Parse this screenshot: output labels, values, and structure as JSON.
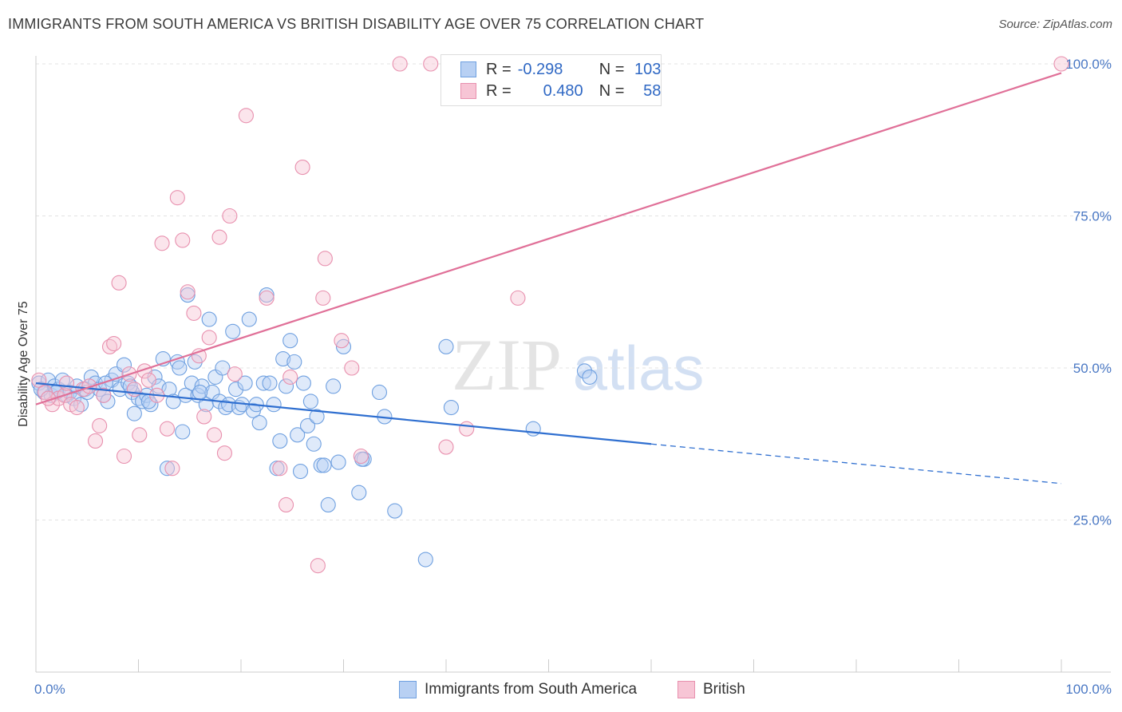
{
  "header": {
    "title": "IMMIGRANTS FROM SOUTH AMERICA VS BRITISH DISABILITY AGE OVER 75 CORRELATION CHART",
    "source": "Source: ZipAtlas.com"
  },
  "watermark": {
    "zip": "ZIP",
    "atlas": "atlas"
  },
  "legend": {
    "rows": [
      {
        "r_label": "R =",
        "r_value": "-0.298",
        "n_label": "N =",
        "n_value": "103",
        "color": "#6fa0e0",
        "fill": "#b8d0f3"
      },
      {
        "r_label": "R =",
        "r_value": "0.480",
        "n_label": "N =",
        "n_value": "58",
        "color": "#e890ae",
        "fill": "#f7c5d5"
      }
    ]
  },
  "bottom_legend": {
    "items": [
      {
        "label": "Immigrants from South America",
        "color": "#6fa0e0",
        "fill": "#b8d0f3"
      },
      {
        "label": "British",
        "color": "#e890ae",
        "fill": "#f7c5d5"
      }
    ]
  },
  "chart_data": {
    "type": "scatter",
    "ylabel": "Disability Age Over 75",
    "xlabel": "",
    "xlim": [
      0,
      100
    ],
    "ylim": [
      0,
      104
    ],
    "x_tick_labels": [
      "0.0%",
      "100.0%"
    ],
    "y_ticks": [
      25,
      50,
      75,
      100
    ],
    "y_tick_labels": [
      "25.0%",
      "50.0%",
      "75.0%",
      "100.0%"
    ],
    "grid": "horizontal dashed",
    "series": [
      {
        "name": "Immigrants from South America",
        "color": "#6fa0e0",
        "fill": "#b8d0f3",
        "trend": {
          "x0": 0,
          "y0": 47.5,
          "x1": 60,
          "y1": 37.5,
          "dashed_to_x": 100,
          "dashed_to_y": 31.0,
          "color": "#2f6fd0"
        },
        "points": [
          [
            0.3,
            47.5
          ],
          [
            0.8,
            46.0
          ],
          [
            1.2,
            48.0
          ],
          [
            1.5,
            45.5
          ],
          [
            1.8,
            47.0
          ],
          [
            2.2,
            46.5
          ],
          [
            2.6,
            48.0
          ],
          [
            3.0,
            45.5
          ],
          [
            3.3,
            46.0
          ],
          [
            3.7,
            45.0
          ],
          [
            4.0,
            47.0
          ],
          [
            4.4,
            44.0
          ],
          [
            4.8,
            46.5
          ],
          [
            5.0,
            46.0
          ],
          [
            5.4,
            48.5
          ],
          [
            5.8,
            47.5
          ],
          [
            6.2,
            46.5
          ],
          [
            6.6,
            45.5
          ],
          [
            7.0,
            44.5
          ],
          [
            7.4,
            48.0
          ],
          [
            7.8,
            49.0
          ],
          [
            8.2,
            46.5
          ],
          [
            8.6,
            50.5
          ],
          [
            9.0,
            47.5
          ],
          [
            9.4,
            46.0
          ],
          [
            9.6,
            42.5
          ],
          [
            10.0,
            45.0
          ],
          [
            10.4,
            44.5
          ],
          [
            10.8,
            45.5
          ],
          [
            11.2,
            44.0
          ],
          [
            11.6,
            48.5
          ],
          [
            12.0,
            47.0
          ],
          [
            12.4,
            51.5
          ],
          [
            12.8,
            33.5
          ],
          [
            13.0,
            46.5
          ],
          [
            13.4,
            44.5
          ],
          [
            13.8,
            51.0
          ],
          [
            14.0,
            50.0
          ],
          [
            14.3,
            39.5
          ],
          [
            14.6,
            45.5
          ],
          [
            14.8,
            62.0
          ],
          [
            15.2,
            47.5
          ],
          [
            15.5,
            51.0
          ],
          [
            15.8,
            45.5
          ],
          [
            16.2,
            47.0
          ],
          [
            16.6,
            44.0
          ],
          [
            16.9,
            58.0
          ],
          [
            17.2,
            46.0
          ],
          [
            17.5,
            48.5
          ],
          [
            17.9,
            44.5
          ],
          [
            18.2,
            50.0
          ],
          [
            18.5,
            43.5
          ],
          [
            18.8,
            44.0
          ],
          [
            19.2,
            56.0
          ],
          [
            19.5,
            46.5
          ],
          [
            19.8,
            43.5
          ],
          [
            20.1,
            44.0
          ],
          [
            20.4,
            47.5
          ],
          [
            20.8,
            58.0
          ],
          [
            21.2,
            43.0
          ],
          [
            21.5,
            44.0
          ],
          [
            21.8,
            41.0
          ],
          [
            22.2,
            47.5
          ],
          [
            22.5,
            62.0
          ],
          [
            22.8,
            47.5
          ],
          [
            23.2,
            44.0
          ],
          [
            23.5,
            33.5
          ],
          [
            23.8,
            38.0
          ],
          [
            24.1,
            51.5
          ],
          [
            24.4,
            47.0
          ],
          [
            24.8,
            54.5
          ],
          [
            25.2,
            51.0
          ],
          [
            25.5,
            39.0
          ],
          [
            25.8,
            33.0
          ],
          [
            26.1,
            47.5
          ],
          [
            26.5,
            40.5
          ],
          [
            26.8,
            44.5
          ],
          [
            27.1,
            37.5
          ],
          [
            27.4,
            42.0
          ],
          [
            27.8,
            34.0
          ],
          [
            28.1,
            34.0
          ],
          [
            28.5,
            27.5
          ],
          [
            29.0,
            47.0
          ],
          [
            29.5,
            34.5
          ],
          [
            30.0,
            53.5
          ],
          [
            31.5,
            29.5
          ],
          [
            32.0,
            35.0
          ],
          [
            33.5,
            46.0
          ],
          [
            34.0,
            42.0
          ],
          [
            35.0,
            26.5
          ],
          [
            38.0,
            18.5
          ],
          [
            40.0,
            53.5
          ],
          [
            40.5,
            43.5
          ],
          [
            48.5,
            40.0
          ],
          [
            53.5,
            49.5
          ],
          [
            54.0,
            48.5
          ],
          [
            31.8,
            35.0
          ],
          [
            16.0,
            46.0
          ],
          [
            9.2,
            47.0
          ],
          [
            6.8,
            47.5
          ],
          [
            2.0,
            46.0
          ],
          [
            11.0,
            44.5
          ],
          [
            0.5,
            46.5
          ]
        ]
      },
      {
        "name": "British",
        "color": "#e890ae",
        "fill": "#f7c5d5",
        "trend": {
          "x0": 0,
          "y0": 44.0,
          "x1": 100,
          "y1": 98.5,
          "color": "#e07098"
        },
        "points": [
          [
            0.3,
            48.0
          ],
          [
            0.9,
            46.0
          ],
          [
            1.6,
            44.0
          ],
          [
            2.2,
            45.0
          ],
          [
            2.8,
            45.5
          ],
          [
            3.4,
            44.0
          ],
          [
            4.0,
            43.5
          ],
          [
            4.6,
            46.5
          ],
          [
            5.2,
            47.0
          ],
          [
            5.8,
            38.0
          ],
          [
            6.2,
            40.5
          ],
          [
            6.6,
            45.5
          ],
          [
            7.2,
            53.5
          ],
          [
            7.6,
            54.0
          ],
          [
            8.1,
            64.0
          ],
          [
            8.6,
            35.5
          ],
          [
            9.1,
            49.0
          ],
          [
            9.6,
            46.5
          ],
          [
            10.1,
            39.0
          ],
          [
            10.6,
            49.5
          ],
          [
            11.0,
            48.0
          ],
          [
            11.8,
            45.5
          ],
          [
            12.3,
            70.5
          ],
          [
            12.8,
            40.0
          ],
          [
            13.3,
            33.5
          ],
          [
            13.8,
            78.0
          ],
          [
            14.3,
            71.0
          ],
          [
            14.8,
            62.5
          ],
          [
            15.4,
            59.0
          ],
          [
            15.9,
            52.0
          ],
          [
            16.4,
            42.0
          ],
          [
            16.9,
            55.0
          ],
          [
            17.4,
            39.0
          ],
          [
            17.9,
            71.5
          ],
          [
            18.4,
            36.0
          ],
          [
            18.9,
            75.0
          ],
          [
            19.4,
            49.0
          ],
          [
            20.5,
            91.5
          ],
          [
            22.5,
            61.5
          ],
          [
            23.8,
            33.5
          ],
          [
            24.4,
            27.5
          ],
          [
            24.8,
            48.5
          ],
          [
            26.0,
            83.0
          ],
          [
            27.5,
            17.5
          ],
          [
            28.0,
            61.5
          ],
          [
            28.2,
            68.0
          ],
          [
            29.8,
            54.5
          ],
          [
            30.8,
            50.0
          ],
          [
            31.7,
            35.5
          ],
          [
            35.5,
            100.0
          ],
          [
            38.5,
            100.0
          ],
          [
            40.0,
            37.0
          ],
          [
            42.0,
            40.0
          ],
          [
            47.0,
            61.5
          ],
          [
            52.0,
            100.0
          ],
          [
            100.0,
            100.0
          ],
          [
            3.0,
            47.5
          ],
          [
            1.2,
            45.0
          ]
        ]
      }
    ]
  }
}
